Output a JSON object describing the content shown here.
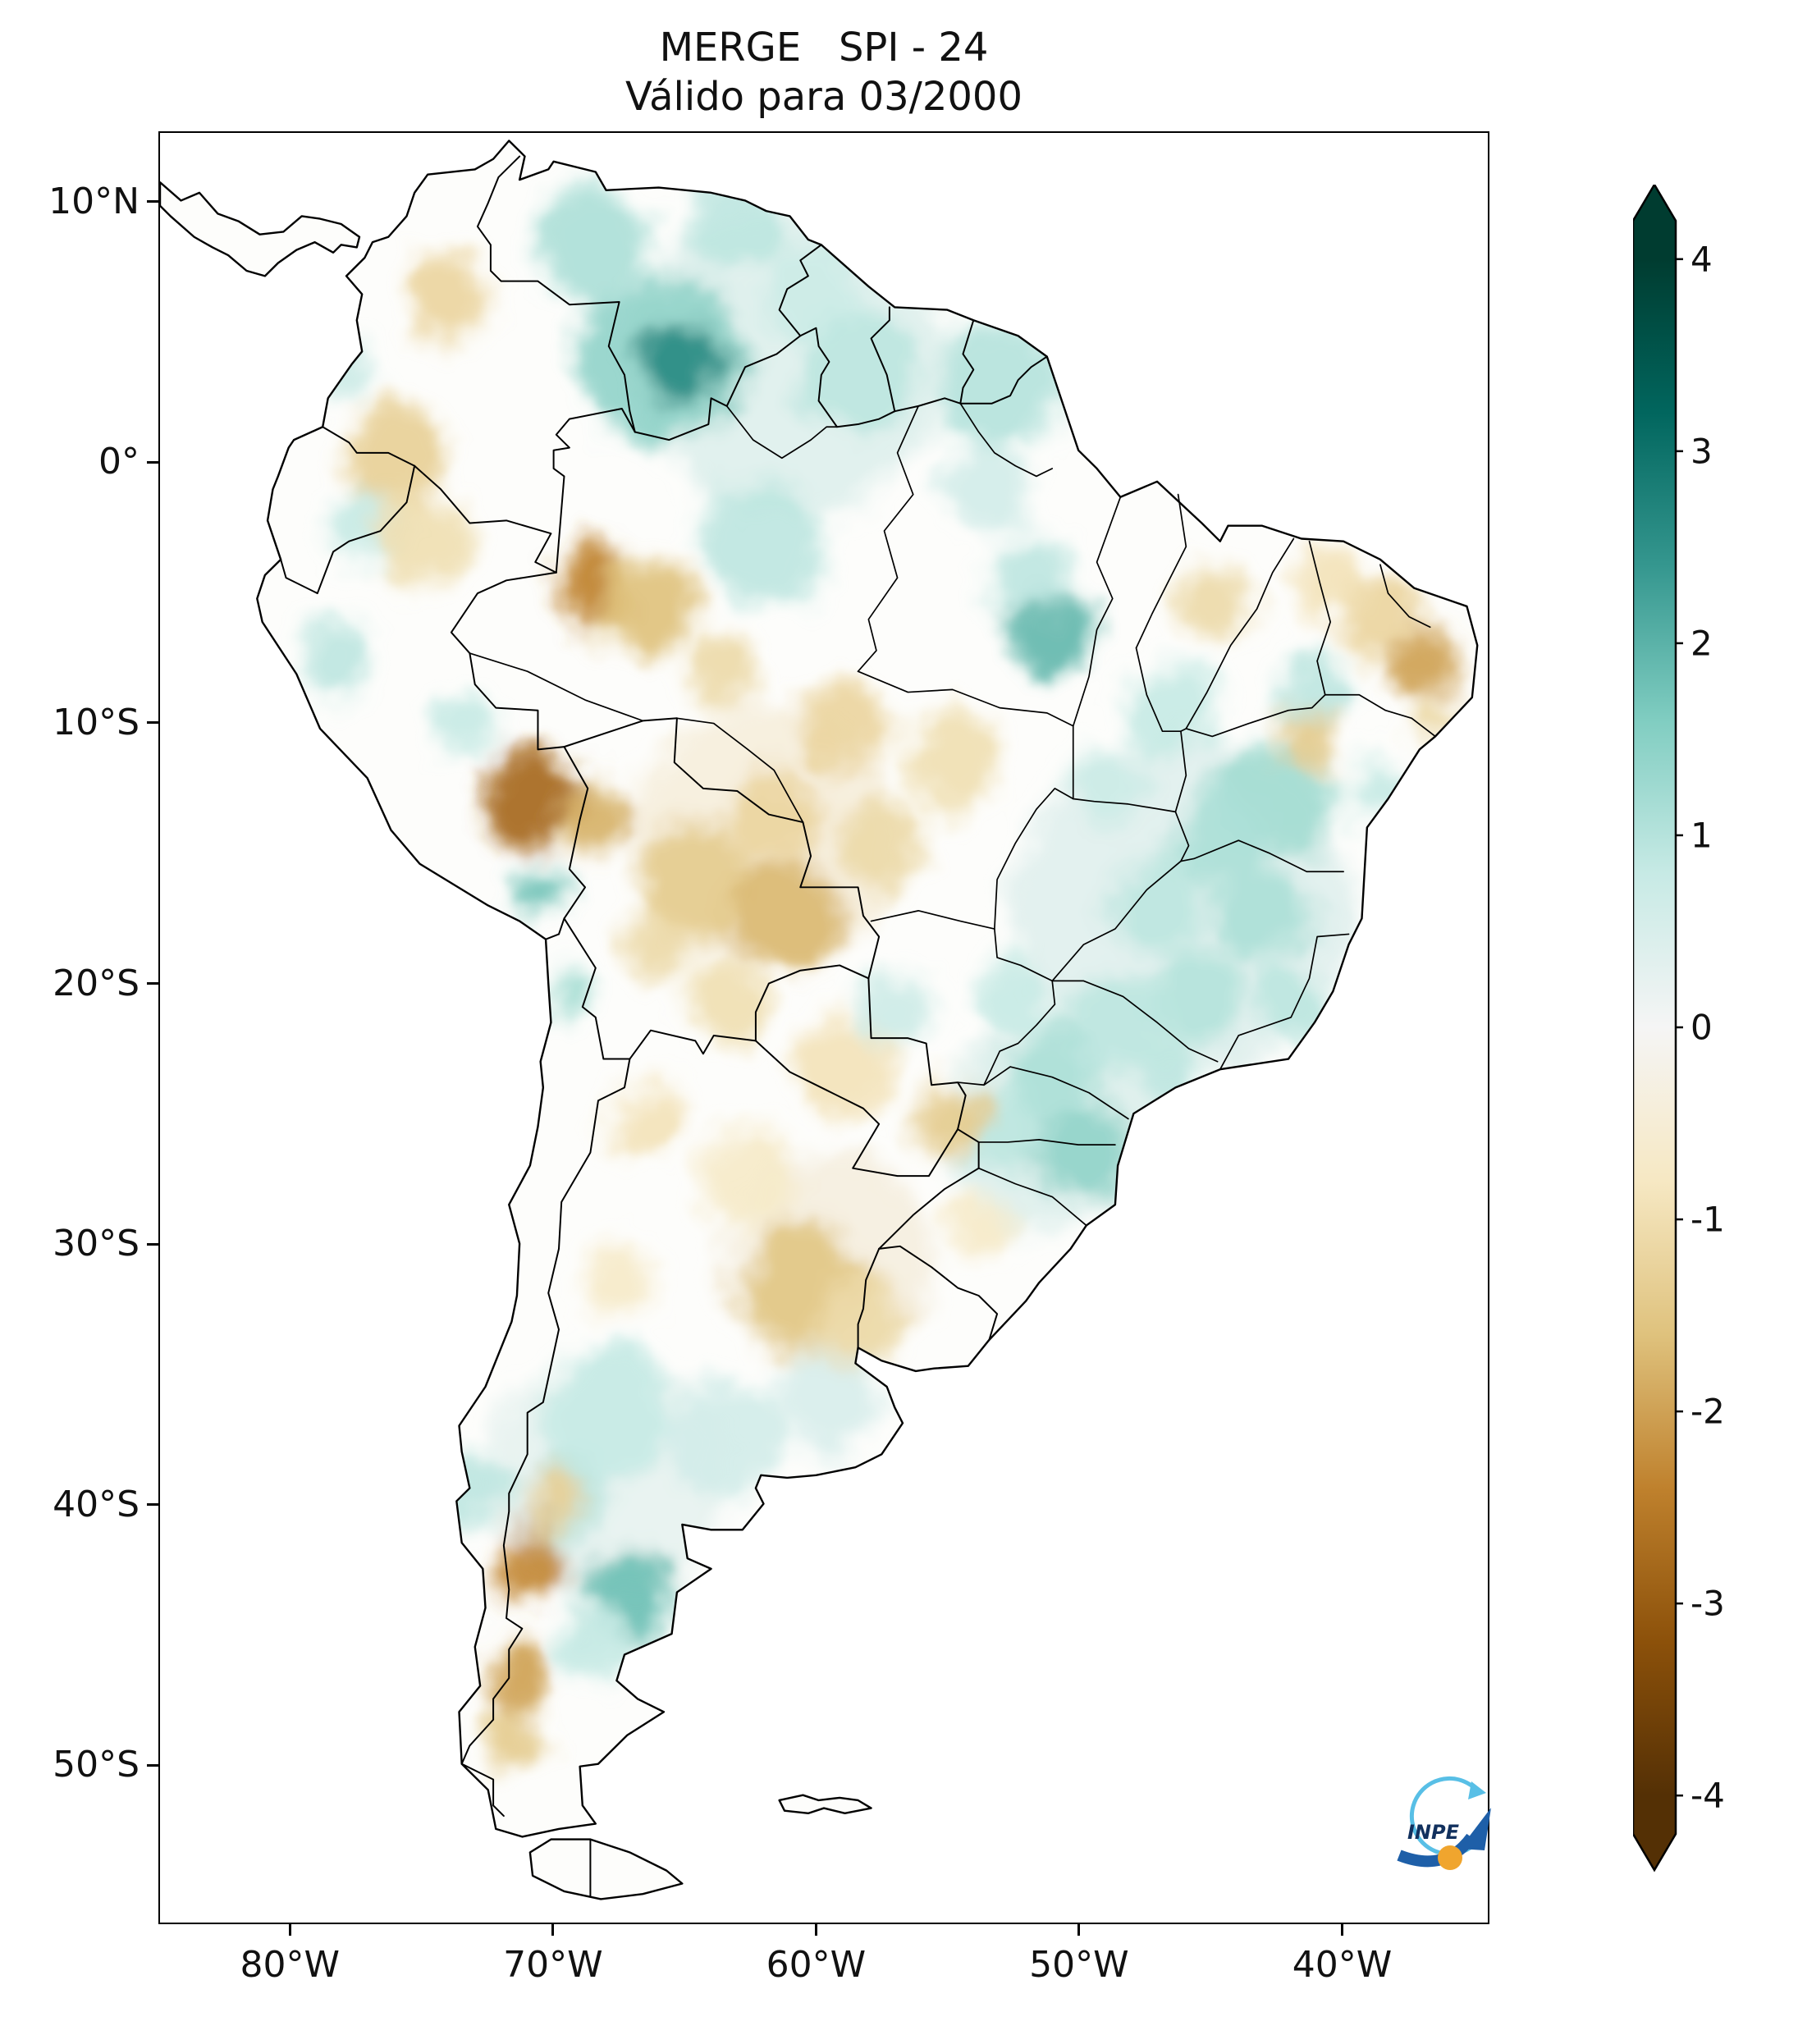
{
  "figure": {
    "title": "MERGE   SPI - 24",
    "subtitle": "Válido para 03/2000"
  },
  "axes": {
    "x_ticks": [
      {
        "label": "80°W",
        "lon": -80
      },
      {
        "label": "70°W",
        "lon": -70
      },
      {
        "label": "60°W",
        "lon": -60
      },
      {
        "label": "50°W",
        "lon": -50
      },
      {
        "label": "40°W",
        "lon": -40
      }
    ],
    "y_ticks": [
      {
        "label": "10°N",
        "lat": 10
      },
      {
        "label": "0°",
        "lat": 0
      },
      {
        "label": "10°S",
        "lat": -10
      },
      {
        "label": "20°S",
        "lat": -20
      },
      {
        "label": "30°S",
        "lat": -30
      },
      {
        "label": "40°S",
        "lat": -40
      },
      {
        "label": "50°S",
        "lat": -50
      }
    ]
  },
  "colorbar": {
    "vmin": -4,
    "vmax": 4,
    "ticks": [
      {
        "label": "4",
        "value": 4
      },
      {
        "label": "3",
        "value": 3
      },
      {
        "label": "2",
        "value": 2
      },
      {
        "label": "1",
        "value": 1
      },
      {
        "label": "0",
        "value": 0
      },
      {
        "label": "-1",
        "value": -1
      },
      {
        "label": "-2",
        "value": -2
      },
      {
        "label": "-3",
        "value": -3
      },
      {
        "label": "-4",
        "value": -4
      }
    ],
    "colormap": [
      {
        "value": -4.0,
        "color": "#543005"
      },
      {
        "value": -3.2,
        "color": "#8c510a"
      },
      {
        "value": -2.4,
        "color": "#bf812d"
      },
      {
        "value": -1.6,
        "color": "#dfc27d"
      },
      {
        "value": -0.8,
        "color": "#f6e8c3"
      },
      {
        "value": 0.0,
        "color": "#f5f5f5"
      },
      {
        "value": 0.8,
        "color": "#c7eae5"
      },
      {
        "value": 1.6,
        "color": "#80cdc1"
      },
      {
        "value": 2.4,
        "color": "#35978f"
      },
      {
        "value": 3.2,
        "color": "#01665e"
      },
      {
        "value": 4.0,
        "color": "#003c30"
      }
    ]
  },
  "logo": {
    "text": "INPE"
  },
  "chart_data": {
    "type": "heatmap",
    "title": "MERGE   SPI - 24",
    "subtitle": "Válido para 03/2000",
    "product": "MERGE",
    "variable": "SPI-24",
    "valid_for": "03/2000",
    "region": "South America",
    "extent": {
      "lon_min": -85,
      "lon_max": -34.4,
      "lat_min": -56.1,
      "lat_max": 12.7
    },
    "colorbar_range": [
      -4,
      4
    ],
    "spi_regions_fields": [
      "lon",
      "lat",
      "radius_deg",
      "spi"
    ],
    "spi_regions": [
      [
        -61,
        4,
        6,
        0.4
      ],
      [
        -46,
        -17,
        6.5,
        0.35
      ],
      [
        -51,
        -25.5,
        4,
        0.4
      ],
      [
        -68,
        -39,
        4.5,
        0.25
      ],
      [
        -62,
        -14.5,
        5,
        -0.4
      ],
      [
        -59.5,
        -30.5,
        4,
        -0.35
      ],
      [
        -66,
        4,
        3.2,
        1.4
      ],
      [
        -65,
        3.8,
        1.5,
        2.6
      ],
      [
        -68.5,
        8.5,
        2.2,
        1.1
      ],
      [
        -63,
        9.2,
        1.8,
        0.9
      ],
      [
        -60,
        6.5,
        2,
        0.7
      ],
      [
        -58.5,
        3.5,
        2.2,
        0.9
      ],
      [
        -53,
        3,
        2.4,
        1.0
      ],
      [
        -62,
        -3,
        2.4,
        0.9
      ],
      [
        -51,
        -6.5,
        1.6,
        1.9
      ],
      [
        -51.8,
        -4.3,
        1.5,
        0.9
      ],
      [
        -46.5,
        -9.5,
        1.8,
        0.8
      ],
      [
        -42.6,
        -12.9,
        2.2,
        1.2
      ],
      [
        -41,
        -8.8,
        1.4,
        0.9
      ],
      [
        -44.5,
        -14.5,
        1.8,
        1.1
      ],
      [
        -47,
        -17,
        1.8,
        0.9
      ],
      [
        -43,
        -17.5,
        1.8,
        1.1
      ],
      [
        -45.5,
        -20.5,
        1.8,
        1.0
      ],
      [
        -48.5,
        -21.5,
        1.8,
        0.9
      ],
      [
        -41.8,
        -20.8,
        1.4,
        0.9
      ],
      [
        -51,
        -23.5,
        1.8,
        1.1
      ],
      [
        -49.8,
        -26.6,
        1.8,
        1.4
      ],
      [
        -52.8,
        -25.6,
        1.4,
        0.9
      ],
      [
        -78.3,
        -7.5,
        1.4,
        0.9
      ],
      [
        -77,
        -2.5,
        1.5,
        0.8
      ],
      [
        -78,
        3.5,
        1.2,
        0.7
      ],
      [
        -70.5,
        -16.5,
        1,
        1.7
      ],
      [
        -69.6,
        -20.5,
        0.8,
        1.2
      ],
      [
        -73.4,
        -10,
        1.2,
        0.8
      ],
      [
        -68,
        -36.5,
        2.4,
        0.8
      ],
      [
        -69.5,
        -39.8,
        1.6,
        0.9
      ],
      [
        -67.2,
        -43.6,
        1.8,
        1.8
      ],
      [
        -63.5,
        -37.5,
        2.2,
        0.6
      ],
      [
        -59.5,
        -36,
        2,
        0.5
      ],
      [
        -73,
        -39.5,
        1.4,
        0.9
      ],
      [
        -57,
        -21,
        1.4,
        0.7
      ],
      [
        -52.5,
        -20.5,
        1.4,
        0.8
      ],
      [
        -49,
        -12.5,
        1.5,
        0.7
      ],
      [
        -38.7,
        -12.6,
        1.1,
        0.8
      ],
      [
        -53.5,
        -1,
        1.6,
        0.6
      ],
      [
        -68.5,
        -45.5,
        1.3,
        0.8
      ],
      [
        -46.5,
        -23.5,
        1.3,
        0.9
      ],
      [
        -74,
        6.5,
        1.6,
        -1.2
      ],
      [
        -76,
        0.3,
        1.9,
        -1.3
      ],
      [
        -75,
        -3,
        1.8,
        -1.0
      ],
      [
        -68.5,
        -4.5,
        1.5,
        -2.4
      ],
      [
        -66.5,
        -5.5,
        1.9,
        -1.6
      ],
      [
        -63.5,
        -8,
        1.4,
        -1.1
      ],
      [
        -70.8,
        -12.8,
        1.9,
        -2.8
      ],
      [
        -68.5,
        -13.6,
        1.4,
        -1.8
      ],
      [
        -64.5,
        -16,
        2.2,
        -1.4
      ],
      [
        -61.2,
        -17.5,
        2.2,
        -1.7
      ],
      [
        -61.5,
        -13.5,
        1.7,
        -1.2
      ],
      [
        -59,
        -10,
        1.8,
        -1.2
      ],
      [
        -54.8,
        -11.5,
        1.8,
        -1.0
      ],
      [
        -57.5,
        -14.5,
        1.6,
        -1.1
      ],
      [
        -36.8,
        -7.6,
        1.3,
        -2.0
      ],
      [
        -38.7,
        -5.9,
        1.5,
        -1.2
      ],
      [
        -40.5,
        -4.6,
        1.4,
        -0.9
      ],
      [
        -44.8,
        -5.4,
        1.4,
        -1.1
      ],
      [
        -41.3,
        -10.6,
        1.1,
        -1.4
      ],
      [
        -36.4,
        -9.9,
        0.9,
        -1.1
      ],
      [
        -55,
        -25.2,
        1.4,
        -1.4
      ],
      [
        -59,
        -23.2,
        1.8,
        -0.9
      ],
      [
        -63.5,
        -20.8,
        1.5,
        -1.0
      ],
      [
        -66,
        -18.5,
        1.3,
        -1.1
      ],
      [
        -60.5,
        -31.6,
        2.4,
        -1.5
      ],
      [
        -58.3,
        -33,
        1.7,
        -1.1
      ],
      [
        -62.5,
        -27.5,
        1.8,
        -0.7
      ],
      [
        -66.5,
        -25.2,
        1.5,
        -0.9
      ],
      [
        -67.5,
        -31.5,
        1.4,
        -0.7
      ],
      [
        -70.9,
        -42.3,
        1.4,
        -2.3
      ],
      [
        -71.3,
        -46.6,
        1.3,
        -2.0
      ],
      [
        -70,
        -39.9,
        1.1,
        -1.3
      ],
      [
        -71.5,
        -48.9,
        1.1,
        -1.4
      ],
      [
        -53.8,
        -29.3,
        1.2,
        -0.7
      ]
    ]
  }
}
